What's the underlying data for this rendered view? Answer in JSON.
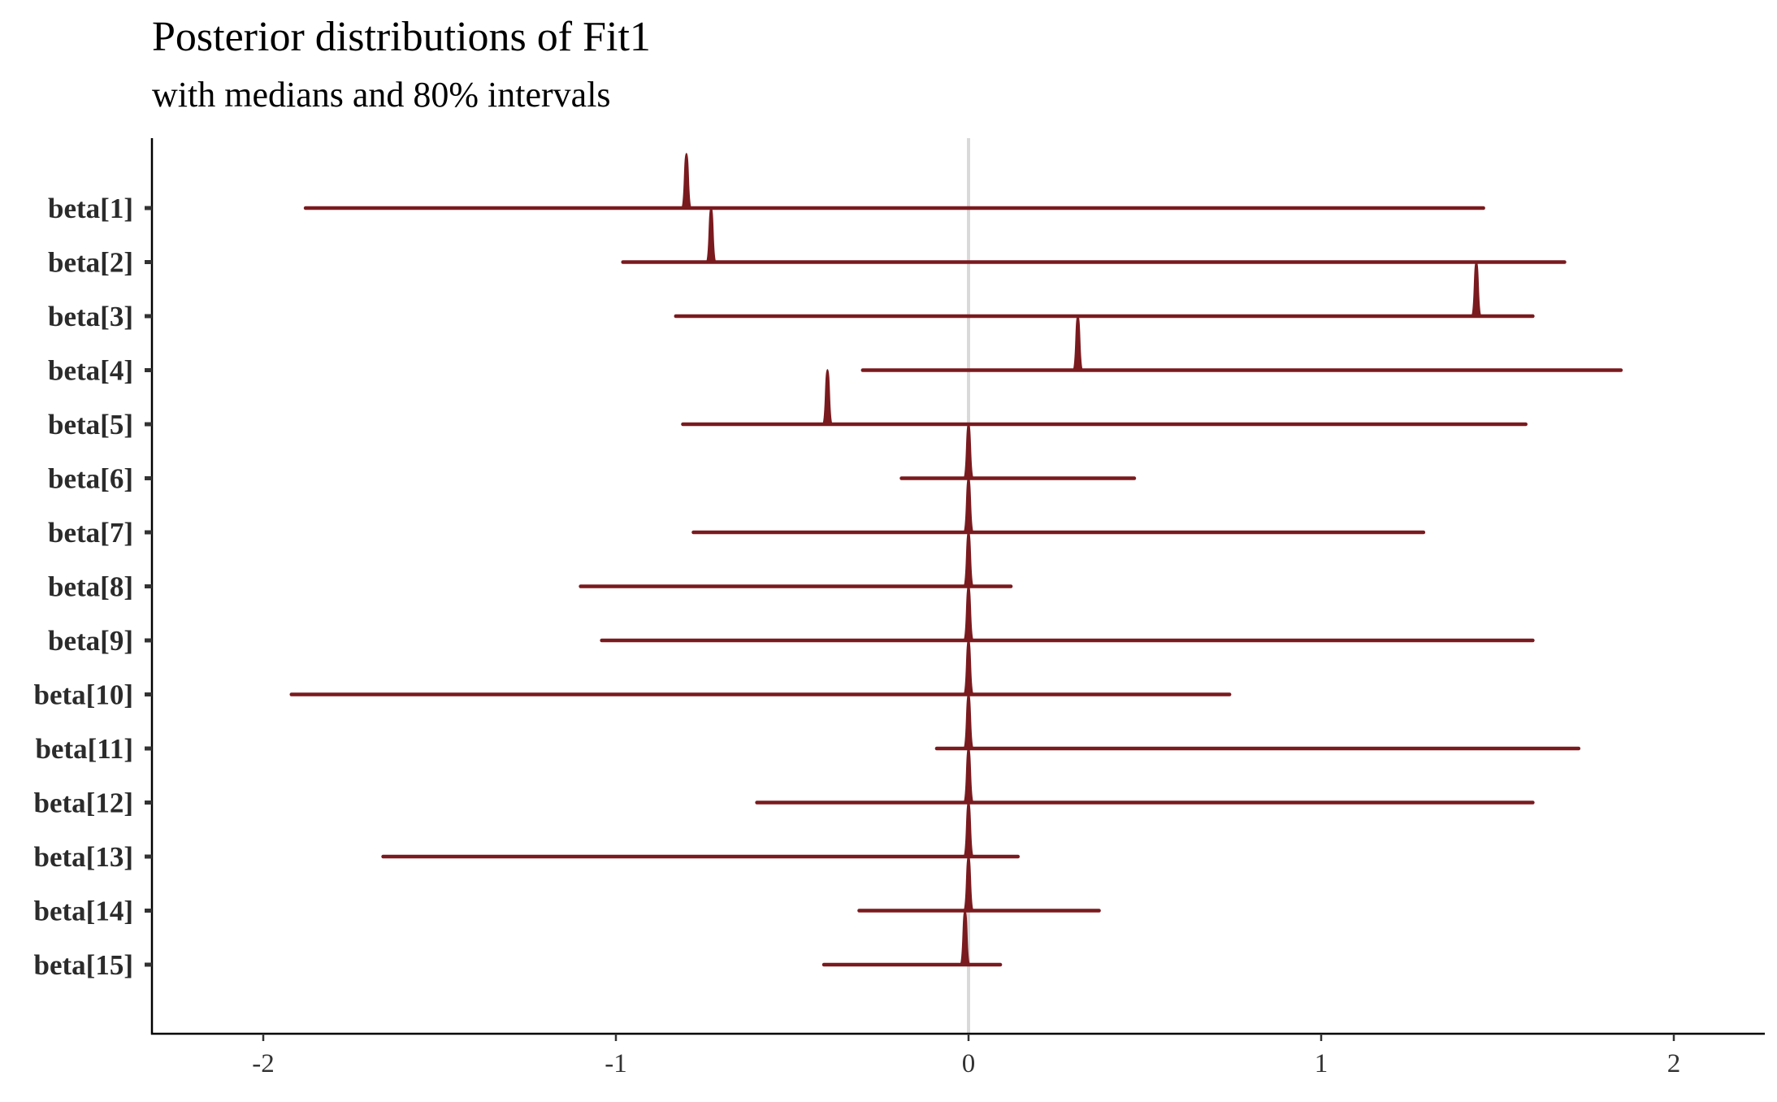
{
  "chart_data": {
    "type": "ridgeline",
    "title": "Posterior distributions of Fit1",
    "subtitle": "with medians and 80% intervals",
    "xlabel": "",
    "ylabel": "",
    "xlim": [
      -2.31,
      2.25
    ],
    "xticks": [
      -2,
      -1,
      0,
      1,
      2
    ],
    "xtick_labels": [
      "-2",
      "-1",
      "0",
      "1",
      "2"
    ],
    "reference_line": 0,
    "grid": false,
    "color": "#7a1a1e",
    "reference_line_color": "#d9d9d9",
    "parameters": [
      "beta[1]",
      "beta[2]",
      "beta[3]",
      "beta[4]",
      "beta[5]",
      "beta[6]",
      "beta[7]",
      "beta[8]",
      "beta[9]",
      "beta[10]",
      "beta[11]",
      "beta[12]",
      "beta[13]",
      "beta[14]",
      "beta[15]"
    ],
    "medians": [
      -0.8,
      -0.73,
      1.44,
      0.31,
      -0.4,
      0.0,
      0.0,
      0.0,
      0.0,
      0.0,
      0.0,
      0.0,
      0.0,
      0.0,
      -0.01
    ],
    "interval_low": [
      -1.88,
      -0.98,
      -0.83,
      -0.3,
      -0.81,
      -0.19,
      -0.78,
      -1.1,
      -1.04,
      -1.92,
      -0.09,
      -0.6,
      -1.66,
      -0.31,
      -0.41
    ],
    "interval_high": [
      1.46,
      1.69,
      1.6,
      1.85,
      1.58,
      0.47,
      1.29,
      0.12,
      1.6,
      0.74,
      1.73,
      1.6,
      0.14,
      0.37,
      0.09
    ]
  }
}
